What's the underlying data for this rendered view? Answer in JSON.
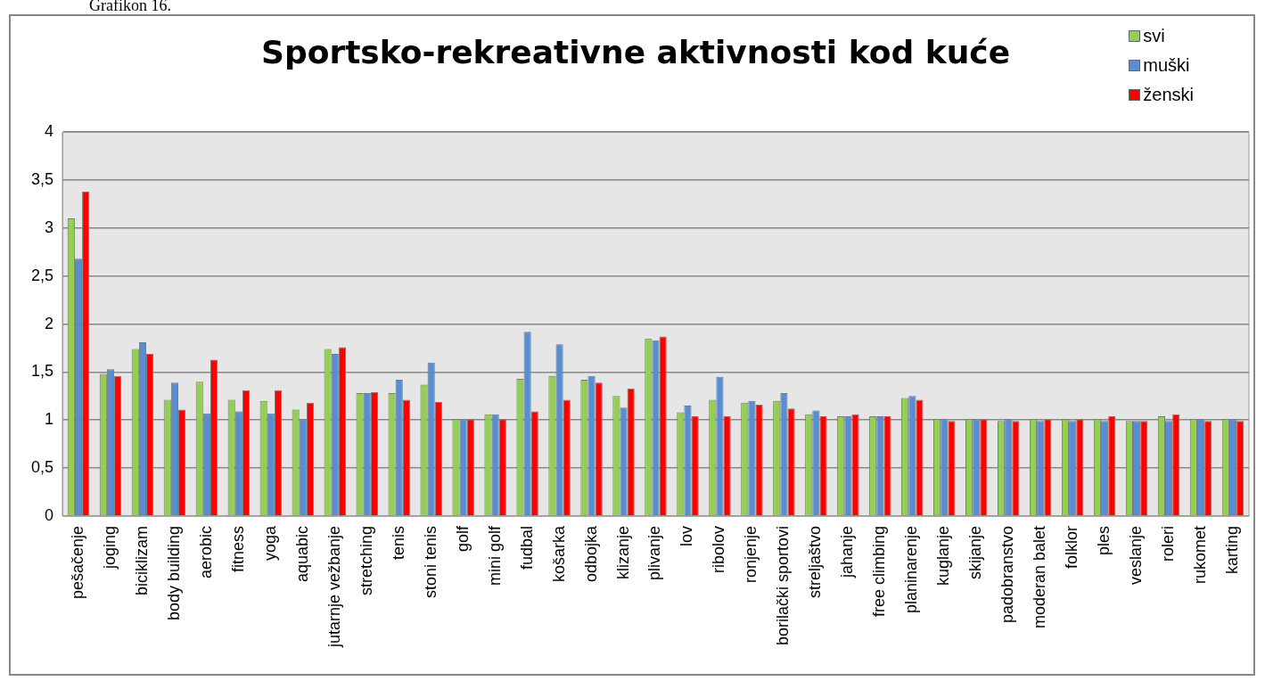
{
  "chart_data": {
    "type": "bar",
    "title": "Sportsko-rekreativne aktivnosti kod kuće",
    "annotations": [
      "Grafikon 16."
    ],
    "categories": [
      "pešačenje",
      "joging",
      "biciklizam",
      "body building",
      "aerobic",
      "fitness",
      "yoga",
      "aquabic",
      "jutarnje vežbanje",
      "stretching",
      "tenis",
      "stoni tenis",
      "golf",
      "mini golf",
      "fudbal",
      "košarka",
      "odbojka",
      "klizanje",
      "plivanje",
      "lov",
      "ribolov",
      "ronjenje",
      "borilački sportovi",
      "streljaštvo",
      "jahanje",
      "free climbing",
      "planinarenje",
      "kuglanje",
      "skijanje",
      "padobranstvo",
      "moderan balet",
      "folklor",
      "ples",
      "veslanje",
      "roleri",
      "rukomet",
      "karting"
    ],
    "series": [
      {
        "name": "svi",
        "color": "#92d050",
        "values": [
          3.1,
          1.48,
          1.74,
          1.21,
          1.4,
          1.21,
          1.2,
          1.11,
          1.74,
          1.28,
          1.28,
          1.37,
          1.01,
          1.06,
          1.43,
          1.46,
          1.42,
          1.25,
          1.85,
          1.08,
          1.21,
          1.18,
          1.2,
          1.06,
          1.04,
          1.04,
          1.23,
          1.01,
          1.01,
          0.99,
          1.01,
          1.01,
          1.01,
          0.99,
          1.04,
          1.01,
          1.01
        ]
      },
      {
        "name": "muški",
        "color": "#558ed5",
        "values": [
          2.68,
          1.53,
          1.81,
          1.39,
          1.07,
          1.09,
          1.07,
          1.01,
          1.69,
          1.28,
          1.42,
          1.6,
          1.01,
          1.06,
          1.92,
          1.79,
          1.46,
          1.13,
          1.83,
          1.15,
          1.45,
          1.2,
          1.28,
          1.1,
          1.04,
          1.04,
          1.25,
          1.01,
          1.01,
          1.01,
          0.99,
          0.99,
          0.99,
          0.99,
          0.99,
          1.01,
          1.01
        ]
      },
      {
        "name": "ženski",
        "color": "#ff0000",
        "values": [
          3.38,
          1.46,
          1.69,
          1.11,
          1.63,
          1.31,
          1.31,
          1.18,
          1.76,
          1.29,
          1.21,
          1.19,
          1.01,
          1.01,
          1.09,
          1.21,
          1.39,
          1.33,
          1.87,
          1.04,
          1.04,
          1.16,
          1.12,
          1.04,
          1.06,
          1.04,
          1.21,
          0.99,
          1.01,
          0.99,
          1.01,
          1.01,
          1.04,
          0.99,
          1.06,
          0.99,
          0.99
        ]
      }
    ],
    "ylim": [
      0,
      4
    ],
    "yticks": [
      0,
      {
        "value": 0.5,
        "label": "0,5"
      },
      1,
      {
        "value": 1.5,
        "label": "1,5"
      },
      2,
      {
        "value": 2.5,
        "label": "2,5"
      },
      3,
      {
        "value": 3.5,
        "label": "3,5"
      },
      4
    ],
    "grid": "y",
    "legend": "top right"
  }
}
